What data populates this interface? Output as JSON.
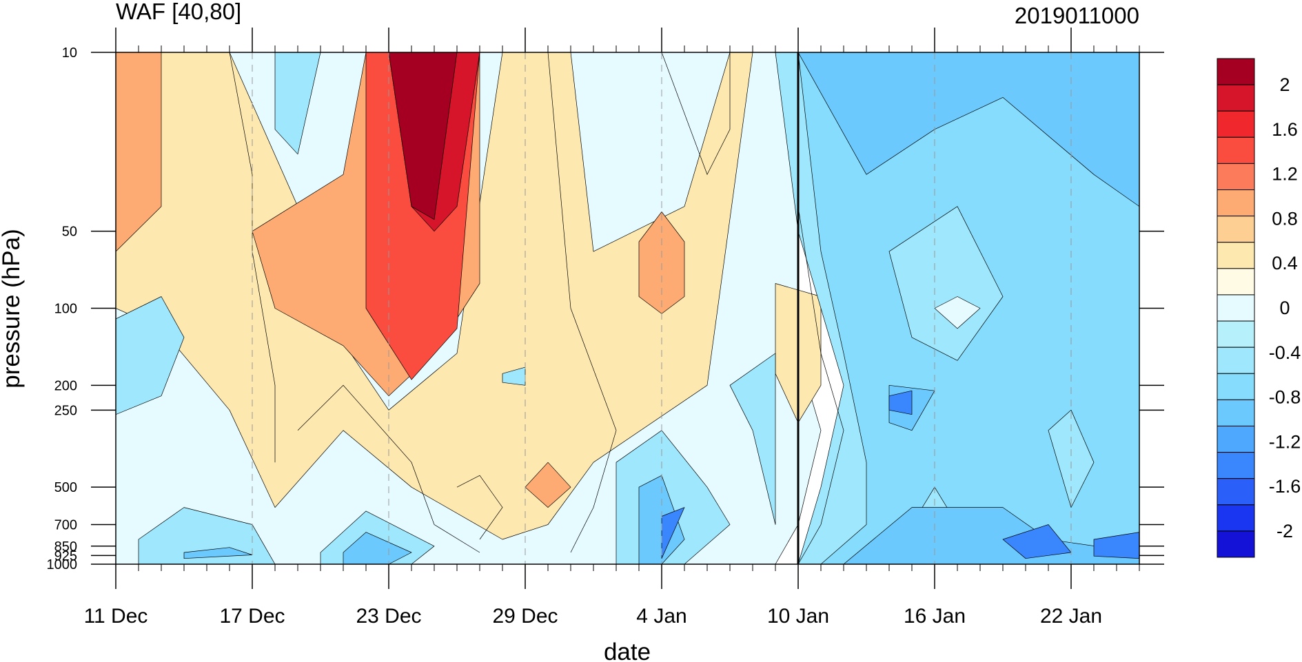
{
  "chart_data": {
    "type": "heatmap",
    "title": "WAF [40,80]",
    "subtitle": "2019011000",
    "xlabel": "date",
    "ylabel": "pressure (hPa)",
    "y_scale": "log",
    "y_inverted": true,
    "ylim": [
      1000,
      10
    ],
    "xlim": [
      "2018-12-11",
      "2019-01-25"
    ],
    "x_ticks": [
      {
        "label": "11 Dec",
        "date": "2018-12-11"
      },
      {
        "label": "17 Dec",
        "date": "2018-12-17"
      },
      {
        "label": "23 Dec",
        "date": "2018-12-23"
      },
      {
        "label": "29 Dec",
        "date": "2018-12-29"
      },
      {
        "label": "4 Jan",
        "date": "2019-01-04"
      },
      {
        "label": "10 Jan",
        "date": "2019-01-10"
      },
      {
        "label": "16 Jan",
        "date": "2019-01-16"
      },
      {
        "label": "22 Jan",
        "date": "2019-01-22"
      }
    ],
    "y_ticks": [
      {
        "label": "10",
        "value": 10
      },
      {
        "label": "50",
        "value": 50
      },
      {
        "label": "100",
        "value": 100
      },
      {
        "label": "200",
        "value": 200
      },
      {
        "label": "250",
        "value": 250
      },
      {
        "label": "500",
        "value": 500
      },
      {
        "label": "700",
        "value": 700
      },
      {
        "label": "850",
        "value": 850
      },
      {
        "label": "925",
        "value": 925
      },
      {
        "label": "1000",
        "value": 1000
      }
    ],
    "analysis_line": "2019-01-10",
    "dashed_gridlines": [
      "2018-12-17",
      "2018-12-23",
      "2018-12-29",
      "2019-01-04",
      "2019-01-16",
      "2019-01-22"
    ],
    "colorbar": {
      "labels": [
        "2",
        "1.6",
        "1.2",
        "0.8",
        "0.4",
        "0",
        "-0.4",
        "-0.8",
        "-1.2",
        "-1.6",
        "-2"
      ],
      "colors": [
        "#a50021",
        "#d6152b",
        "#f0272d",
        "#fa4d40",
        "#fc7b5a",
        "#fdaa73",
        "#fdcf92",
        "#fde8b0",
        "#fffbe5",
        "#e6fbff",
        "#b6f1fb",
        "#9fe7fc",
        "#86dcfd",
        "#6cc9fd",
        "#4ea8fd",
        "#3a87fd",
        "#2a5ff9",
        "#1a36f0",
        "#1512d8"
      ]
    },
    "regions": [
      {
        "level": 0.2,
        "points": [
          [
            "2018-12-11",
            10
          ],
          [
            "2019-01-09",
            10
          ],
          [
            "2019-01-10",
            40
          ],
          [
            "2019-01-10",
            150
          ],
          [
            "2019-01-11",
            300
          ],
          [
            "2019-01-10",
            700
          ],
          [
            "2019-01-09",
            1000
          ],
          [
            "2018-12-11",
            1000
          ]
        ]
      },
      {
        "level": 0.6,
        "points": [
          [
            "2018-12-11",
            10
          ],
          [
            "2018-12-16",
            10
          ],
          [
            "2018-12-19",
            40
          ],
          [
            "2018-12-20",
            100
          ],
          [
            "2018-12-23",
            250
          ],
          [
            "2018-12-26",
            150
          ],
          [
            "2018-12-28",
            10
          ],
          [
            "2018-12-31",
            10
          ],
          [
            "2019-01-01",
            60
          ],
          [
            "2019-01-05",
            40
          ],
          [
            "2019-01-07",
            10
          ],
          [
            "2019-01-08",
            10
          ],
          [
            "2019-01-06",
            200
          ],
          [
            "2019-01-01",
            400
          ],
          [
            "2018-12-30",
            700
          ],
          [
            "2018-12-28",
            800
          ],
          [
            "2018-12-24",
            500
          ],
          [
            "2018-12-21",
            300
          ],
          [
            "2018-12-18",
            600
          ],
          [
            "2018-12-16",
            250
          ],
          [
            "2018-12-13",
            120
          ],
          [
            "2018-12-11",
            100
          ]
        ]
      },
      {
        "level": 1.0,
        "points": [
          [
            "2018-12-11",
            10
          ],
          [
            "2018-12-13",
            10
          ],
          [
            "2018-12-13",
            40
          ],
          [
            "2018-12-11",
            60
          ]
        ]
      },
      {
        "level": 1.0,
        "points": [
          [
            "2018-12-17",
            50
          ],
          [
            "2018-12-21",
            30
          ],
          [
            "2018-12-22",
            10
          ],
          [
            "2018-12-27",
            10
          ],
          [
            "2018-12-27",
            80
          ],
          [
            "2018-12-25",
            150
          ],
          [
            "2018-12-23",
            220
          ],
          [
            "2018-12-21",
            140
          ],
          [
            "2018-12-18",
            100
          ]
        ]
      },
      {
        "level": 1.4,
        "points": [
          [
            "2018-12-22",
            10
          ],
          [
            "2018-12-27",
            10
          ],
          [
            "2018-12-26",
            120
          ],
          [
            "2018-12-24",
            190
          ],
          [
            "2018-12-22",
            100
          ]
        ]
      },
      {
        "level": 1.8,
        "points": [
          [
            "2018-12-23",
            10
          ],
          [
            "2018-12-27",
            10
          ],
          [
            "2018-12-26",
            40
          ],
          [
            "2018-12-25",
            50
          ],
          [
            "2018-12-24",
            40
          ]
        ]
      },
      {
        "level": 2.2,
        "points": [
          [
            "2018-12-23",
            10
          ],
          [
            "2018-12-26",
            10
          ],
          [
            "2018-12-25",
            45
          ],
          [
            "2018-12-24",
            40
          ]
        ]
      },
      {
        "level": 1.0,
        "points": [
          [
            "2019-01-03",
            55
          ],
          [
            "2019-01-04",
            42
          ],
          [
            "2019-01-05",
            55
          ],
          [
            "2019-01-05",
            90
          ],
          [
            "2019-01-04",
            105
          ],
          [
            "2019-01-03",
            90
          ]
        ]
      },
      {
        "level": 1.0,
        "points": [
          [
            "2018-12-30",
            400
          ],
          [
            "2018-12-31",
            500
          ],
          [
            "2018-12-30",
            600
          ],
          [
            "2018-12-29",
            500
          ]
        ]
      },
      {
        "level": 0.6,
        "points": [
          [
            "2019-01-09",
            80
          ],
          [
            "2019-01-11",
            90
          ],
          [
            "2019-01-11",
            200
          ],
          [
            "2019-01-10",
            280
          ],
          [
            "2019-01-09",
            180
          ]
        ]
      },
      {
        "level": -0.2,
        "points": [
          [
            "2018-12-11",
            110
          ],
          [
            "2018-12-13",
            90
          ],
          [
            "2018-12-14",
            130
          ],
          [
            "2018-12-13",
            220
          ],
          [
            "2018-12-11",
            260
          ]
        ]
      },
      {
        "level": -0.2,
        "points": [
          [
            "2018-12-18",
            10
          ],
          [
            "2018-12-20",
            10
          ],
          [
            "2018-12-19",
            25
          ],
          [
            "2018-12-18",
            20
          ]
        ]
      },
      {
        "level": -0.2,
        "points": [
          [
            "2018-12-12",
            800
          ],
          [
            "2018-12-14",
            600
          ],
          [
            "2018-12-17",
            700
          ],
          [
            "2018-12-18",
            1000
          ],
          [
            "2018-12-12",
            1000
          ]
        ]
      },
      {
        "level": -0.2,
        "points": [
          [
            "2018-12-20",
            900
          ],
          [
            "2018-12-22",
            620
          ],
          [
            "2018-12-25",
            850
          ],
          [
            "2018-12-24",
            1000
          ],
          [
            "2018-12-20",
            1000
          ]
        ]
      },
      {
        "level": -0.2,
        "points": [
          [
            "2019-01-02",
            400
          ],
          [
            "2019-01-04",
            300
          ],
          [
            "2019-01-06",
            500
          ],
          [
            "2019-01-07",
            700
          ],
          [
            "2019-01-05",
            1000
          ],
          [
            "2019-01-02",
            1000
          ]
        ]
      },
      {
        "level": -0.2,
        "points": [
          [
            "2019-01-07",
            200
          ],
          [
            "2019-01-09",
            150
          ],
          [
            "2019-01-09",
            700
          ],
          [
            "2019-01-08",
            300
          ]
        ]
      },
      {
        "level": -0.2,
        "points": [
          [
            "2018-12-28",
            180
          ],
          [
            "2018-12-29",
            170
          ],
          [
            "2018-12-29",
            200
          ],
          [
            "2018-12-28",
            195
          ]
        ]
      },
      {
        "level": -0.2,
        "points": [
          [
            "2019-01-09",
            10
          ],
          [
            "2019-01-25",
            10
          ],
          [
            "2019-01-25",
            1000
          ],
          [
            "2019-01-10",
            1000
          ],
          [
            "2019-01-11",
            500
          ],
          [
            "2019-01-12",
            200
          ],
          [
            "2019-01-11",
            100
          ],
          [
            "2019-01-10",
            50
          ]
        ]
      },
      {
        "level": -0.4,
        "points": [
          [
            "2019-01-10",
            10
          ],
          [
            "2019-01-25",
            10
          ],
          [
            "2019-01-25",
            1000
          ],
          [
            "2019-01-11",
            1000
          ],
          [
            "2019-01-13",
            700
          ],
          [
            "2019-01-13",
            400
          ],
          [
            "2019-01-12",
            150
          ],
          [
            "2019-01-11",
            60
          ]
        ]
      },
      {
        "level": -0.2,
        "points": [
          [
            "2019-01-14",
            60
          ],
          [
            "2019-01-17",
            40
          ],
          [
            "2019-01-19",
            90
          ],
          [
            "2019-01-17",
            160
          ],
          [
            "2019-01-15",
            130
          ]
        ]
      },
      {
        "level": 0.2,
        "points": [
          [
            "2019-01-16",
            100
          ],
          [
            "2019-01-17",
            90
          ],
          [
            "2019-01-18",
            100
          ],
          [
            "2019-01-17",
            120
          ]
        ]
      },
      {
        "level": -0.2,
        "points": [
          [
            "2019-01-15",
            700
          ],
          [
            "2019-01-16",
            500
          ],
          [
            "2019-01-17",
            700
          ],
          [
            "2019-01-16",
            800
          ]
        ]
      },
      {
        "level": -0.2,
        "points": [
          [
            "2019-01-21",
            300
          ],
          [
            "2019-01-22",
            250
          ],
          [
            "2019-01-23",
            400
          ],
          [
            "2019-01-22",
            600
          ]
        ]
      },
      {
        "level": -0.6,
        "points": [
          [
            "2019-01-10",
            10
          ],
          [
            "2019-01-25",
            10
          ],
          [
            "2019-01-25",
            40
          ],
          [
            "2019-01-23",
            30
          ],
          [
            "2019-01-19",
            15
          ],
          [
            "2019-01-16",
            20
          ],
          [
            "2019-01-13",
            30
          ]
        ]
      },
      {
        "level": -0.6,
        "points": [
          [
            "2019-01-12",
            1000
          ],
          [
            "2019-01-15",
            600
          ],
          [
            "2019-01-19",
            600
          ],
          [
            "2019-01-21",
            800
          ],
          [
            "2019-01-25",
            900
          ],
          [
            "2019-01-25",
            1000
          ]
        ]
      },
      {
        "level": -0.6,
        "points": [
          [
            "2018-12-21",
            900
          ],
          [
            "2018-12-22",
            750
          ],
          [
            "2018-12-24",
            900
          ],
          [
            "2018-12-23",
            1000
          ],
          [
            "2018-12-21",
            1000
          ]
        ]
      },
      {
        "level": -0.6,
        "points": [
          [
            "2019-01-03",
            500
          ],
          [
            "2019-01-04",
            450
          ],
          [
            "2019-01-05",
            800
          ],
          [
            "2019-01-04",
            1000
          ],
          [
            "2019-01-03",
            1000
          ]
        ]
      },
      {
        "level": -0.6,
        "points": [
          [
            "2019-01-14",
            200
          ],
          [
            "2019-01-16",
            210
          ],
          [
            "2019-01-15",
            300
          ],
          [
            "2019-01-14",
            280
          ]
        ]
      },
      {
        "level": -0.6,
        "points": [
          [
            "2018-12-14",
            900
          ],
          [
            "2018-12-16",
            860
          ],
          [
            "2018-12-17",
            920
          ],
          [
            "2018-12-14",
            950
          ]
        ]
      },
      {
        "level": -1.0,
        "points": [
          [
            "2019-01-14",
            220
          ],
          [
            "2019-01-15",
            210
          ],
          [
            "2019-01-15",
            260
          ],
          [
            "2019-01-14",
            250
          ]
        ]
      },
      {
        "level": -1.0,
        "points": [
          [
            "2019-01-19",
            800
          ],
          [
            "2019-01-21",
            700
          ],
          [
            "2019-01-22",
            900
          ],
          [
            "2019-01-20",
            950
          ]
        ]
      },
      {
        "level": -1.0,
        "points": [
          [
            "2019-01-23",
            800
          ],
          [
            "2019-01-25",
            750
          ],
          [
            "2019-01-25",
            950
          ],
          [
            "2019-01-23",
            930
          ]
        ]
      },
      {
        "level": -1.0,
        "points": [
          [
            "2019-01-04",
            650
          ],
          [
            "2019-01-05",
            600
          ],
          [
            "2019-01-04",
            950
          ]
        ]
      }
    ],
    "contour_lines": [
      [
        [
          "2019-01-10",
          40
        ],
        [
          "2019-01-11",
          150
        ],
        [
          "2019-01-12",
          300
        ],
        [
          "2019-01-11",
          700
        ],
        [
          "2019-01-10",
          1000
        ]
      ],
      [
        [
          "2018-12-30",
          10
        ],
        [
          "2018-12-31",
          100
        ],
        [
          "2019-01-02",
          300
        ],
        [
          "2019-01-01",
          600
        ],
        [
          "2018-12-31",
          900
        ]
      ],
      [
        [
          "2018-12-19",
          300
        ],
        [
          "2018-12-21",
          200
        ],
        [
          "2018-12-24",
          400
        ],
        [
          "2018-12-25",
          700
        ],
        [
          "2018-12-27",
          900
        ]
      ],
      [
        [
          "2018-12-16",
          10
        ],
        [
          "2018-12-17",
          30
        ],
        [
          "2018-12-17",
          60
        ],
        [
          "2018-12-18",
          200
        ],
        [
          "2018-12-18",
          400
        ]
      ],
      [
        [
          "2019-01-04",
          10
        ],
        [
          "2019-01-06",
          30
        ],
        [
          "2019-01-07",
          20
        ],
        [
          "2019-01-07",
          10
        ]
      ],
      [
        [
          "2018-12-26",
          500
        ],
        [
          "2018-12-27",
          450
        ],
        [
          "2018-12-28",
          600
        ],
        [
          "2018-12-27",
          800
        ]
      ]
    ]
  }
}
